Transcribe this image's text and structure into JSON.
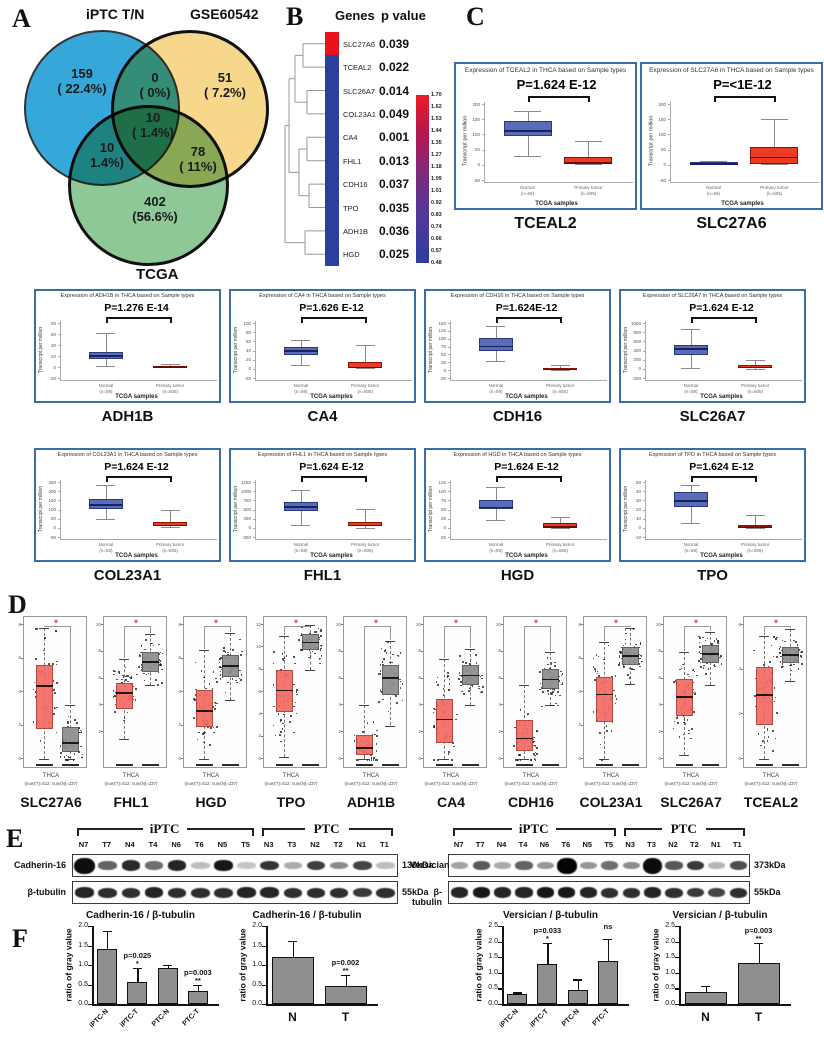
{
  "panel_letters": {
    "A": "A",
    "B": "B",
    "C": "C",
    "D": "D",
    "E": "E",
    "F": "F"
  },
  "venn": {
    "set_labels": [
      "iPTC T/N",
      "GSE60542",
      "TCGA"
    ],
    "colors": {
      "iptc": "#35a7d9",
      "gse": "#f7d78c",
      "tcga": "#8fc897"
    },
    "regions": [
      {
        "id": "iptc-only",
        "line1": "159",
        "line2": "( 22.4%)"
      },
      {
        "id": "iptc-gse",
        "line1": "0",
        "line2": "( 0%)"
      },
      {
        "id": "gse-only",
        "line1": "51",
        "line2": "( 7.2%)"
      },
      {
        "id": "center",
        "line1": "10",
        "line2": "( 1.4%)"
      },
      {
        "id": "iptc-tcga",
        "line1": "10",
        "line2": "1.4%)"
      },
      {
        "id": "gse-tcga",
        "line1": "78",
        "line2": "( 11%)"
      },
      {
        "id": "tcga-only",
        "line1": "402",
        "line2": "(56.6%)"
      }
    ]
  },
  "cluster": {
    "header_genes": "Genes",
    "header_p": "p value",
    "rows": [
      {
        "gene": "SLC27A6",
        "p": "0.039",
        "heat": "#e8131b"
      },
      {
        "gene": "TCEAL2",
        "p": "0.022",
        "heat": "#2b3f9e"
      },
      {
        "gene": "SLC26A7",
        "p": "0.014",
        "heat": "#2b3f9e"
      },
      {
        "gene": "COL23A1",
        "p": "0.049",
        "heat": "#2b3f9e"
      },
      {
        "gene": "CA4",
        "p": "0.001",
        "heat": "#2b3f9e"
      },
      {
        "gene": "FHL1",
        "p": "0.013",
        "heat": "#2b3f9e"
      },
      {
        "gene": "CDH16",
        "p": "0.037",
        "heat": "#2b3f9e"
      },
      {
        "gene": "TPO",
        "p": "0.035",
        "heat": "#2b3f9e"
      },
      {
        "gene": "ADH1B",
        "p": "0.036",
        "heat": "#2b3f9e"
      },
      {
        "gene": "HGD",
        "p": "0.025",
        "heat": "#2b3f9e"
      }
    ],
    "colorbar_ticks": [
      "1.70",
      "1.62",
      "1.53",
      "1.44",
      "1.35",
      "1.27",
      "1.18",
      "1.09",
      "1.01",
      "0.92",
      "0.83",
      "0.74",
      "0.66",
      "0.57",
      "0.48"
    ],
    "colorbar_top": "#ed1c24",
    "colorbar_bottom": "#2e3d9b"
  },
  "chart_data": [
    {
      "panel": "C1",
      "type": "box",
      "style": "ualcan",
      "gene": "TCEAL2",
      "title": "Expression of TCEAL2 in THCA based on Sample types",
      "p_label": "P=1.624 E-12",
      "ylabel": "Transcript per million",
      "xtitle": "TCGA samples",
      "xcats": [
        "Normal",
        "Primary tumor"
      ],
      "xns": [
        "(n=59)",
        "(n=505)"
      ],
      "ylim": [
        -50,
        200
      ],
      "yticks": [
        200,
        150,
        100,
        50,
        0,
        -50
      ],
      "normal": [
        30,
        95,
        113,
        143,
        178
      ],
      "tumor": [
        2,
        5,
        8,
        27,
        78
      ]
    },
    {
      "panel": "C1",
      "type": "box",
      "style": "ualcan",
      "gene": "SLC27A6",
      "title": "Expression of SLC27A6 in THCA based on Sample types",
      "p_label": "P=<1E-12",
      "ylabel": "Transcript per million",
      "xtitle": "TCGA samples",
      "xcats": [
        "Normal",
        "Primary tumor"
      ],
      "xns": [
        "(n=59)",
        "(n=505)"
      ],
      "ylim": [
        -50,
        200
      ],
      "yticks": [
        200,
        150,
        100,
        50,
        0,
        -50
      ],
      "normal": [
        1,
        3,
        5,
        8,
        11
      ],
      "tumor": [
        1,
        4,
        27,
        57,
        152
      ]
    },
    {
      "panel": "C2",
      "type": "box",
      "style": "ualcan",
      "gene": "ADH1B",
      "title": "Expression of ADH1B in THCA based on Sample types",
      "p_label": "P=1.276 E-14",
      "ylabel": "Transcript per million",
      "xtitle": "TCGA samples",
      "xcats": [
        "Normal",
        "Primary tumor"
      ],
      "xns": [
        "(n=59)",
        "(n=505)"
      ],
      "ylim": [
        -20,
        80
      ],
      "yticks": [
        80,
        60,
        40,
        20,
        0,
        -20
      ],
      "normal": [
        1,
        14,
        21,
        27,
        62
      ],
      "tumor": [
        0.5,
        1,
        1.5,
        2.5,
        5
      ]
    },
    {
      "panel": "C2",
      "type": "box",
      "style": "ualcan",
      "gene": "CA4",
      "title": "Expression of CA4 in THCA based on Sample types",
      "p_label": "P=1.626 E-12",
      "ylabel": "Transcript per million",
      "xtitle": "TCGA samples",
      "xcats": [
        "Normal",
        "Primary tumor"
      ],
      "xns": [
        "(n=59)",
        "(n=505)"
      ],
      "ylim": [
        -20,
        100
      ],
      "yticks": [
        100,
        80,
        60,
        40,
        20,
        0,
        -20
      ],
      "normal": [
        8,
        30,
        41,
        48,
        62
      ],
      "tumor": [
        1,
        2,
        5,
        16,
        52
      ]
    },
    {
      "panel": "C2",
      "type": "box",
      "style": "ualcan",
      "gene": "CDH16",
      "title": "Expression of CDH16 in THCA based on Sample types",
      "p_label": "P=1.624E-12",
      "ylabel": "Transcript per million",
      "xtitle": "TCGA samples",
      "xcats": [
        "Normal",
        "Primary tumor"
      ],
      "xns": [
        "(n=59)",
        "(n=505)"
      ],
      "ylim": [
        -25,
        150
      ],
      "yticks": [
        150,
        125,
        100,
        75,
        50,
        25,
        0,
        -25
      ],
      "normal": [
        30,
        62,
        77,
        102,
        140
      ],
      "tumor": [
        1,
        2,
        4,
        7,
        17
      ]
    },
    {
      "panel": "C2",
      "type": "box",
      "style": "ualcan",
      "gene": "SLC26A7",
      "title": "Expression of SLC26A7 in THCA based on Sample types",
      "p_label": "P=1.624 E-12",
      "ylabel": "Transcript per million",
      "xtitle": "TCGA samples",
      "xcats": [
        "Normal",
        "Primary tumor"
      ],
      "xns": [
        "(n=59)",
        "(n=505)"
      ],
      "ylim": [
        -200,
        1000
      ],
      "yticks": [
        1000,
        800,
        600,
        400,
        200,
        0,
        -200
      ],
      "normal": [
        20,
        300,
        450,
        530,
        880
      ],
      "tumor": [
        5,
        25,
        45,
        75,
        195
      ]
    },
    {
      "panel": "C3",
      "type": "box",
      "style": "ualcan",
      "gene": "COL23A1",
      "title": "Expression of COL23A1 in THCA based on Sample types",
      "p_label": "P=1.624 E-12",
      "ylabel": "Transcript per million",
      "xtitle": "TCGA samples",
      "xcats": [
        "Normal",
        "Primary tumor"
      ],
      "xns": [
        "(n=59)",
        "(n=505)"
      ],
      "ylim": [
        -50,
        250
      ],
      "yticks": [
        250,
        200,
        150,
        100,
        50,
        0,
        -50
      ],
      "normal": [
        48,
        103,
        130,
        160,
        235
      ],
      "tumor": [
        2,
        8,
        18,
        32,
        95
      ]
    },
    {
      "panel": "C3",
      "type": "box",
      "style": "ualcan",
      "gene": "FHL1",
      "title": "Expression of FHL1 in THCA based on Sample types",
      "p_label": "P=1.624 E-12",
      "ylabel": "Transcript per million",
      "xtitle": "TCGA samples",
      "xcats": [
        "Normal",
        "Primary tumor"
      ],
      "xns": [
        "(n=59)",
        "(n=505)"
      ],
      "ylim": [
        -250,
        1250
      ],
      "yticks": [
        1250,
        1000,
        750,
        500,
        250,
        0,
        -250
      ],
      "normal": [
        90,
        450,
        590,
        710,
        1040
      ],
      "tumor": [
        5,
        60,
        85,
        155,
        510
      ]
    },
    {
      "panel": "C3",
      "type": "box",
      "style": "ualcan",
      "gene": "HGD",
      "title": "Expression of HGD in THCA based on Sample types",
      "p_label": "P=1.624 E-12",
      "ylabel": "Transcript per million",
      "xtitle": "TCGA samples",
      "xcats": [
        "Normal",
        "Primary tumor"
      ],
      "xns": [
        "(n=59)",
        "(n=505)"
      ],
      "ylim": [
        -25,
        125
      ],
      "yticks": [
        125,
        100,
        75,
        50,
        25,
        0,
        -25
      ],
      "normal": [
        22,
        52,
        57,
        77,
        112
      ],
      "tumor": [
        0.5,
        2,
        5,
        12,
        30
      ]
    },
    {
      "panel": "C3",
      "type": "box",
      "style": "ualcan",
      "gene": "TPO",
      "title": "Expression of TPO in THCA based on Sample types",
      "p_label": "P=1.624 E-12",
      "ylabel": "Transcript per million",
      "xtitle": "TCGA samples",
      "xcats": [
        "Normal",
        "Primary tumor"
      ],
      "xns": [
        "(n=59)",
        "(n=505)"
      ],
      "ylim": [
        -10,
        50
      ],
      "yticks": [
        50,
        40,
        30,
        20,
        10,
        0,
        -10
      ],
      "normal": [
        5,
        23,
        30,
        39,
        47
      ],
      "tumor": [
        0.3,
        0.5,
        1,
        3,
        14
      ]
    },
    {
      "panel": "D",
      "type": "box",
      "style": "gepia",
      "gene": "SLC27A6",
      "sig": "*",
      "xlabel": "THCA",
      "xsub": "(num(T)=512; num(N)=337)",
      "ylim": [
        0,
        8
      ],
      "yticks": [
        0,
        2,
        4,
        6,
        8
      ],
      "tumor": [
        0,
        1.8,
        4.4,
        5.6,
        7.8
      ],
      "normal": [
        0,
        0.4,
        1.0,
        1.9,
        3.2
      ]
    },
    {
      "panel": "D",
      "type": "box",
      "style": "gepia",
      "gene": "FHL1",
      "sig": "*",
      "xlabel": "THCA",
      "xsub": "(num(T)=512; num(N)=337)",
      "ylim": [
        0,
        10
      ],
      "yticks": [
        2,
        4,
        6,
        8,
        10
      ],
      "tumor": [
        1.5,
        3.7,
        5.0,
        5.7,
        7.5
      ],
      "normal": [
        5.5,
        6.5,
        7.3,
        8.0,
        9.3
      ]
    },
    {
      "panel": "D",
      "type": "box",
      "style": "gepia",
      "gene": "HGD",
      "sig": "*",
      "xlabel": "THCA",
      "xsub": "(num(T)=512; num(N)=337)",
      "ylim": [
        0,
        8
      ],
      "yticks": [
        0,
        2,
        4,
        6,
        8
      ],
      "tumor": [
        0,
        1.9,
        2.9,
        4.1,
        6.5
      ],
      "normal": [
        3.5,
        4.9,
        5.6,
        6.2,
        7.5
      ]
    },
    {
      "panel": "D",
      "type": "box",
      "style": "gepia",
      "gene": "TPO",
      "sig": "*",
      "xlabel": "THCA",
      "xsub": "(num(T)=512; num(N)=337)",
      "ylim": [
        0,
        12
      ],
      "yticks": [
        0,
        2,
        4,
        6,
        8,
        10,
        12
      ],
      "tumor": [
        0.2,
        4.2,
        6.2,
        8.0,
        11
      ],
      "normal": [
        8,
        9.8,
        10.5,
        11.2,
        12
      ]
    },
    {
      "panel": "D",
      "type": "box",
      "style": "gepia",
      "gene": "ADH1B",
      "sig": "*",
      "xlabel": "THCA",
      "xsub": "(num(T)=512; num(N)=337)",
      "ylim": [
        0,
        10
      ],
      "yticks": [
        0,
        2,
        4,
        6,
        8,
        10
      ],
      "tumor": [
        0,
        0.3,
        0.9,
        1.8,
        4
      ],
      "normal": [
        2.5,
        4.8,
        6.1,
        7.0,
        8.8
      ]
    },
    {
      "panel": "D",
      "type": "box",
      "style": "gepia",
      "gene": "CA4",
      "sig": "*",
      "xlabel": "THCA",
      "xsub": "(num(T)=512; num(N)=337)",
      "ylim": [
        0,
        10
      ],
      "yticks": [
        0,
        2,
        4,
        6,
        8,
        10
      ],
      "tumor": [
        0,
        1.2,
        3.0,
        4.5,
        7.5
      ],
      "normal": [
        4,
        5.5,
        6.3,
        7.0,
        8.2
      ]
    },
    {
      "panel": "D",
      "type": "box",
      "style": "gepia",
      "gene": "CDH16",
      "sig": "*",
      "xlabel": "THCA",
      "xsub": "(num(T)=512; num(N)=337)",
      "ylim": [
        0,
        10
      ],
      "yticks": [
        0,
        2,
        4,
        6,
        8,
        10
      ],
      "tumor": [
        0,
        0.6,
        1.6,
        2.9,
        5.5
      ],
      "normal": [
        4,
        5.2,
        6.0,
        6.7,
        8
      ]
    },
    {
      "panel": "D",
      "type": "box",
      "style": "gepia",
      "gene": "COL23A1",
      "sig": "*",
      "xlabel": "THCA",
      "xsub": "(num(T)=512; num(N)=337)",
      "ylim": [
        0,
        8
      ],
      "yticks": [
        0,
        2,
        4,
        6,
        8
      ],
      "tumor": [
        0,
        2.2,
        3.9,
        4.9,
        7
      ],
      "normal": [
        4.5,
        5.6,
        6.2,
        6.7,
        7.8
      ]
    },
    {
      "panel": "D",
      "type": "box",
      "style": "gepia",
      "gene": "SLC26A7",
      "sig": "*",
      "xlabel": "THCA",
      "xsub": "(num(T)=512; num(N)=337)",
      "ylim": [
        0,
        10
      ],
      "yticks": [
        0,
        2,
        4,
        6,
        8,
        10
      ],
      "tumor": [
        0.3,
        3.2,
        4.7,
        6.0,
        8
      ],
      "normal": [
        5.5,
        7.2,
        7.9,
        8.5,
        9.5
      ]
    },
    {
      "panel": "D",
      "type": "box",
      "style": "gepia",
      "gene": "TCEAL2",
      "sig": "*",
      "xlabel": "THCA",
      "xsub": "(num(T)=512; num(N)=337)",
      "ylim": [
        0,
        6
      ],
      "yticks": [
        0,
        2,
        4,
        6
      ],
      "tumor": [
        0,
        1.5,
        2.9,
        4.1,
        5.5
      ],
      "normal": [
        3.5,
        4.3,
        4.7,
        5.0,
        5.8
      ]
    },
    {
      "panel": "F",
      "type": "bar",
      "title": "Cadherin-16 /  β-tubulin",
      "ylabel": "ratio of gray value",
      "ylim": [
        0,
        2.0
      ],
      "yticks": [
        "2.0",
        "1.5",
        "1.0",
        "0.5",
        "0.0"
      ],
      "categories": [
        "iPTC-N",
        "iPTC-T",
        "PTC-N",
        "PTC-T"
      ],
      "values": [
        1.42,
        0.57,
        0.92,
        0.33
      ],
      "errors": [
        0.45,
        0.35,
        0.08,
        0.15
      ],
      "annotations": [
        null,
        {
          "p": "p=0.025",
          "stars": "*"
        },
        null,
        {
          "p": "p=0.003",
          "stars": "**"
        }
      ],
      "rotate_xlabels": true
    },
    {
      "panel": "F",
      "type": "bar",
      "title": "Cadherin-16 /  β-tubulin",
      "ylabel": "ratio of gray value",
      "ylim": [
        0,
        2.0
      ],
      "yticks": [
        "2.0",
        "1.5",
        "1.0",
        "0.5",
        "0.0"
      ],
      "categories": [
        "N",
        "T"
      ],
      "values": [
        1.21,
        0.46
      ],
      "errors": [
        0.4,
        0.29
      ],
      "annotations": [
        null,
        {
          "p": "p=0.002",
          "stars": "**"
        }
      ],
      "rotate_xlabels": false
    },
    {
      "panel": "F",
      "type": "bar",
      "title": "Versician / β-tubulin",
      "ylabel": "ratio of gray value",
      "ylim": [
        0,
        2.5
      ],
      "yticks": [
        "2.5",
        "2.0",
        "1.5",
        "1.0",
        "0.5",
        "0.0"
      ],
      "categories": [
        "iPTC-N",
        "iPTC-T",
        "PTC-N",
        "PTC-T"
      ],
      "values": [
        0.32,
        1.27,
        0.45,
        1.38
      ],
      "errors": [
        0.05,
        0.68,
        0.34,
        0.7
      ],
      "annotations": [
        null,
        {
          "p": "p=0.033",
          "stars": "*"
        },
        null,
        {
          "p": "ns",
          "stars": ""
        }
      ],
      "rotate_xlabels": true
    },
    {
      "panel": "F",
      "type": "bar",
      "title": "Versician / β-tubulin",
      "ylabel": "ratio of gray value",
      "ylim": [
        0,
        2.5
      ],
      "yticks": [
        "2.5",
        "2.0",
        "1.5",
        "1.0",
        "0.5",
        "0.0"
      ],
      "categories": [
        "N",
        "T"
      ],
      "values": [
        0.37,
        1.32
      ],
      "errors": [
        0.21,
        0.64
      ],
      "annotations": [
        null,
        {
          "p": "p=0.003",
          "stars": "**"
        }
      ],
      "rotate_xlabels": false
    }
  ],
  "blots": [
    {
      "side": "left",
      "groups": [
        {
          "label": "iPTC",
          "from": 0,
          "to": 7
        },
        {
          "label": "PTC",
          "from": 8,
          "to": 13
        }
      ],
      "lanes": [
        "N7",
        "T7",
        "N4",
        "T4",
        "N6",
        "T6",
        "N5",
        "T5",
        "N3",
        "T3",
        "N2",
        "T2",
        "N1",
        "T1"
      ],
      "rows": [
        {
          "label": "Cadherin-16",
          "kda": "130kDa",
          "bands": [
            0.95,
            0.55,
            0.82,
            0.5,
            0.85,
            0.12,
            0.92,
            0.08,
            0.78,
            0.2,
            0.72,
            0.35,
            0.7,
            0.12
          ]
        },
        {
          "label": "β-tubulin",
          "kda": "55kDa",
          "bands": [
            0.85,
            0.8,
            0.8,
            0.85,
            0.8,
            0.8,
            0.8,
            0.85,
            0.85,
            0.8,
            0.8,
            0.8,
            0.75,
            0.8
          ]
        }
      ]
    },
    {
      "side": "right",
      "groups": [
        {
          "label": "iPTC",
          "from": 0,
          "to": 7
        },
        {
          "label": "PTC",
          "from": 8,
          "to": 13
        }
      ],
      "lanes": [
        "N7",
        "T7",
        "N4",
        "T4",
        "N6",
        "T6",
        "N5",
        "T5",
        "N3",
        "T3",
        "N2",
        "T2",
        "N1",
        "T1"
      ],
      "rows": [
        {
          "label": "Versician",
          "kda": "373kDa",
          "bands": [
            0.25,
            0.6,
            0.2,
            0.55,
            0.3,
            1.0,
            0.3,
            0.5,
            0.35,
            0.97,
            0.6,
            0.75,
            0.15,
            0.65
          ]
        },
        {
          "label": "β-tubulin",
          "kda": "55kDa",
          "bands": [
            0.85,
            0.9,
            0.85,
            0.85,
            0.9,
            0.9,
            0.85,
            0.8,
            0.8,
            0.85,
            0.8,
            0.75,
            0.7,
            0.8
          ]
        }
      ]
    }
  ]
}
